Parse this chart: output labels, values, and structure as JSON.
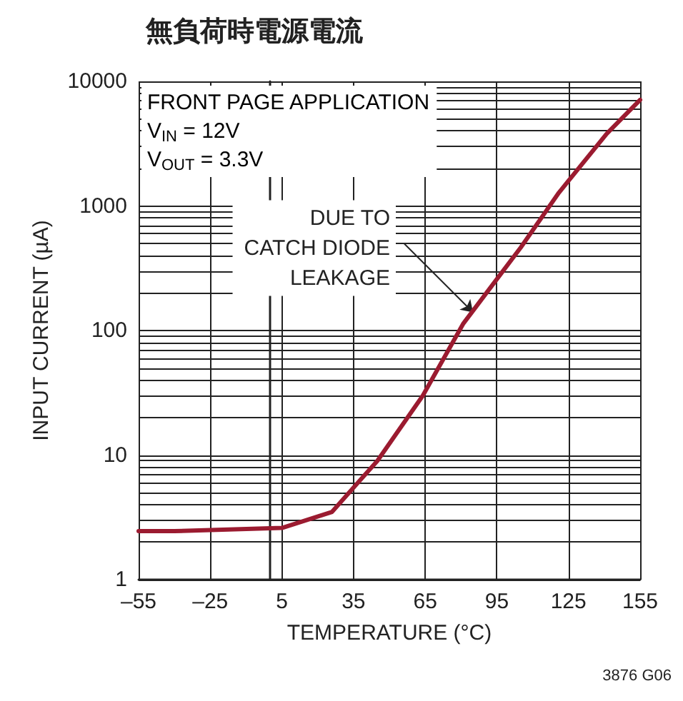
{
  "chart_data": {
    "type": "line",
    "title": "無負荷時電源電流",
    "xlabel": "TEMPERATURE (°C)",
    "ylabel": "INPUT CURRENT (µA)",
    "x": [
      -55,
      -40,
      5,
      26,
      45,
      64,
      81,
      96,
      105,
      121,
      141,
      155
    ],
    "series": [
      {
        "color": "#9b1b30",
        "values": [
          2.45,
          2.45,
          2.6,
          3.5,
          9,
          30,
          114,
          274,
          464,
          1280,
          3800,
          7100
        ]
      }
    ],
    "log": "y",
    "grid": true,
    "marker": "none",
    "line_style": "solid",
    "xlim": [
      -55,
      155
    ],
    "xticks": [
      {
        "value": -55,
        "label": "–55"
      },
      {
        "value": -25,
        "label": "–25"
      },
      5,
      35,
      65,
      95,
      125,
      155
    ],
    "ylim": [
      1,
      10000
    ],
    "yticks": [
      1,
      {
        "value": 2,
        "label": null
      },
      {
        "value": 3,
        "label": null
      },
      {
        "value": 4,
        "label": null
      },
      {
        "value": 5,
        "label": null
      },
      {
        "value": 6,
        "label": null
      },
      {
        "value": 7,
        "label": null
      },
      {
        "value": 8,
        "label": null
      },
      {
        "value": 9,
        "label": null
      },
      10,
      {
        "value": 20,
        "label": null
      },
      {
        "value": 30,
        "label": null
      },
      {
        "value": 40,
        "label": null
      },
      {
        "value": 50,
        "label": null
      },
      {
        "value": 60,
        "label": null
      },
      {
        "value": 70,
        "label": null
      },
      {
        "value": 80,
        "label": null
      },
      {
        "value": 90,
        "label": null
      },
      100,
      {
        "value": 200,
        "label": null
      },
      {
        "value": 300,
        "label": null
      },
      {
        "value": 400,
        "label": null
      },
      {
        "value": 500,
        "label": null
      },
      {
        "value": 600,
        "label": null
      },
      {
        "value": 700,
        "label": null
      },
      {
        "value": 800,
        "label": null
      },
      {
        "value": 900,
        "label": null
      },
      1000,
      {
        "value": 2000,
        "label": null
      },
      {
        "value": 3000,
        "label": null
      },
      {
        "value": 4000,
        "label": null
      },
      {
        "value": 5000,
        "label": null
      },
      {
        "value": 6000,
        "label": null
      },
      {
        "value": 7000,
        "label": null
      },
      {
        "value": 8000,
        "label": null
      },
      {
        "value": 9000,
        "label": null
      },
      10000
    ],
    "annotations": [
      "FRONT PAGE APPLICATION\nV$_{IN}$ = 12V\nV$_{OUT}$ = 3.3V",
      {
        "text": "DUE TO\nCATCH DIODE\nLEAKAGE",
        "x": 85,
        "y": 140
      },
      "3876 G06"
    ]
  }
}
